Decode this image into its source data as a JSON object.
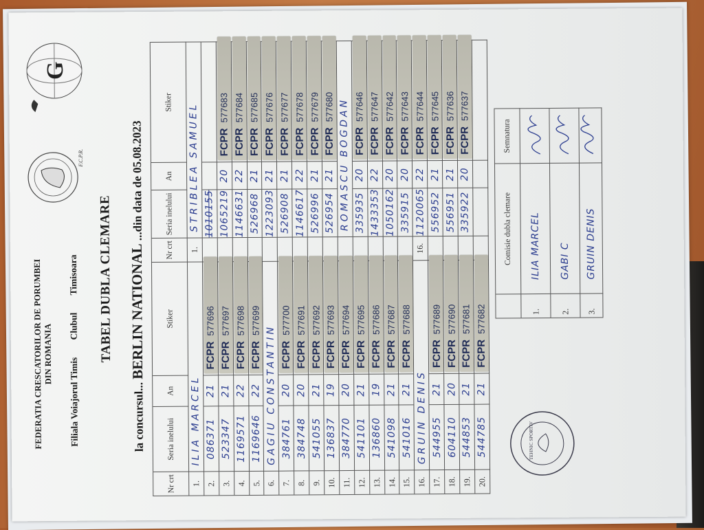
{
  "header": {
    "federation": "FEDERATIA CRESCATORILOR DE PORUMBEI",
    "country": "DIN ROMANIA",
    "branch": "Filiala Voiajorul Timis",
    "club_label": "Clubul",
    "club": "Timisoara",
    "title": "TABEL DUBLA CLEMARE",
    "contest_prefix": "la concursul...",
    "contest": "BERLIN NATIONAL",
    "date_prefix": "...din data de",
    "date": "05.08.2023"
  },
  "logo": {
    "ring_text": "Federatia Crescatorilor de Porumbei din România",
    "abbr": "F.C.P.R."
  },
  "table": {
    "columns": [
      "Nr crt",
      "Seria inelului",
      "An",
      "Stiker"
    ],
    "sticker_brand": "FCPR",
    "left": [
      {
        "nr": "1.",
        "name": "ILIA MARCEL"
      },
      {
        "nr": "2.",
        "seria": "086371",
        "an": "21",
        "stiker": "577696"
      },
      {
        "nr": "3.",
        "seria": "523347",
        "an": "21",
        "stiker": "577697"
      },
      {
        "nr": "4.",
        "seria": "1169571",
        "an": "22",
        "stiker": "577698"
      },
      {
        "nr": "5.",
        "seria": "1169646",
        "an": "22",
        "stiker": "577699"
      },
      {
        "nr": "6.",
        "name": "GAGIU CONSTANTIN"
      },
      {
        "nr": "7.",
        "seria": "384761",
        "an": "20",
        "stiker": "577700"
      },
      {
        "nr": "8.",
        "seria": "384748",
        "an": "20",
        "stiker": "577691"
      },
      {
        "nr": "9.",
        "seria": "541055",
        "an": "21",
        "stiker": "577692"
      },
      {
        "nr": "10.",
        "seria": "136837",
        "an": "19",
        "stiker": "577693"
      },
      {
        "nr": "11.",
        "seria": "384770",
        "an": "20",
        "stiker": "577694"
      },
      {
        "nr": "12.",
        "seria": "541101",
        "an": "21",
        "stiker": "577695"
      },
      {
        "nr": "13.",
        "seria": "136860",
        "an": "19",
        "stiker": "577686"
      },
      {
        "nr": "14.",
        "seria": "541098",
        "an": "21",
        "stiker": "577687"
      },
      {
        "nr": "15.",
        "seria": "541016",
        "an": "21",
        "stiker": "577688"
      },
      {
        "nr": "16.",
        "name": "GRUIN DENIS"
      },
      {
        "nr": "17.",
        "seria": "544955",
        "an": "21",
        "stiker": "577689"
      },
      {
        "nr": "18.",
        "seria": "604110",
        "an": "20",
        "stiker": "577690"
      },
      {
        "nr": "19.",
        "seria": "544853",
        "an": "21",
        "stiker": "577681"
      },
      {
        "nr": "20.",
        "seria": "544785",
        "an": "21",
        "stiker": "577682"
      }
    ],
    "right": [
      {
        "nr": "1.",
        "name": "STRIBLEA SAMUEL"
      },
      {
        "nr": "",
        "seria_struck": "1010155"
      },
      {
        "nr": "",
        "seria": "1065219",
        "an": "20",
        "stiker": "577683"
      },
      {
        "nr": "",
        "seria": "1146631",
        "an": "22",
        "stiker": "577684"
      },
      {
        "nr": "",
        "seria": "526968",
        "an": "21",
        "stiker": "577685"
      },
      {
        "nr": "",
        "seria": "1223093",
        "an": "21",
        "stiker": "577676"
      },
      {
        "nr": "",
        "seria": "526908",
        "an": "21",
        "stiker": "577677"
      },
      {
        "nr": "",
        "seria": "1146617",
        "an": "22",
        "stiker": "577678"
      },
      {
        "nr": "",
        "seria": "526996",
        "an": "21",
        "stiker": "577679"
      },
      {
        "nr": "",
        "seria": "526954",
        "an": "21",
        "stiker": "577680"
      },
      {
        "nr": "",
        "name": "ROMASCU BOGDAN"
      },
      {
        "nr": "",
        "seria": "335935",
        "an": "20",
        "stiker": "577646"
      },
      {
        "nr": "",
        "seria": "1433353",
        "an": "22",
        "stiker": "577647"
      },
      {
        "nr": "",
        "seria": "1050162",
        "an": "20",
        "stiker": "577642"
      },
      {
        "nr": "",
        "seria": "335915",
        "an": "20",
        "stiker": "577643"
      },
      {
        "nr": "16.",
        "seria": "1120065",
        "an": "22",
        "stiker": "577644"
      },
      {
        "nr": "",
        "seria": "556952",
        "an": "21",
        "stiker": "577645"
      },
      {
        "nr": "",
        "seria": "556951",
        "an": "21",
        "stiker": "577636"
      },
      {
        "nr": "",
        "seria": "335922",
        "an": "20",
        "stiker": "577637"
      },
      {
        "nr": ""
      }
    ]
  },
  "committee": {
    "header_name": "Comisie dubla clemare",
    "header_signature": "Semnatura",
    "members": [
      {
        "nr": "1.",
        "name": "ILIA MARCEL"
      },
      {
        "nr": "2.",
        "name": "GABI C"
      },
      {
        "nr": "3.",
        "name": "GRUIN DENIS"
      }
    ]
  },
  "stamp": {
    "text": "TEHNIC SPORTIV"
  },
  "colors": {
    "ink": "#2b3d8f",
    "sticker": "#c3c2b7",
    "sticker_text": "#1e2a55",
    "paper": "#eef0ef",
    "table_wood": "#b8703e"
  }
}
